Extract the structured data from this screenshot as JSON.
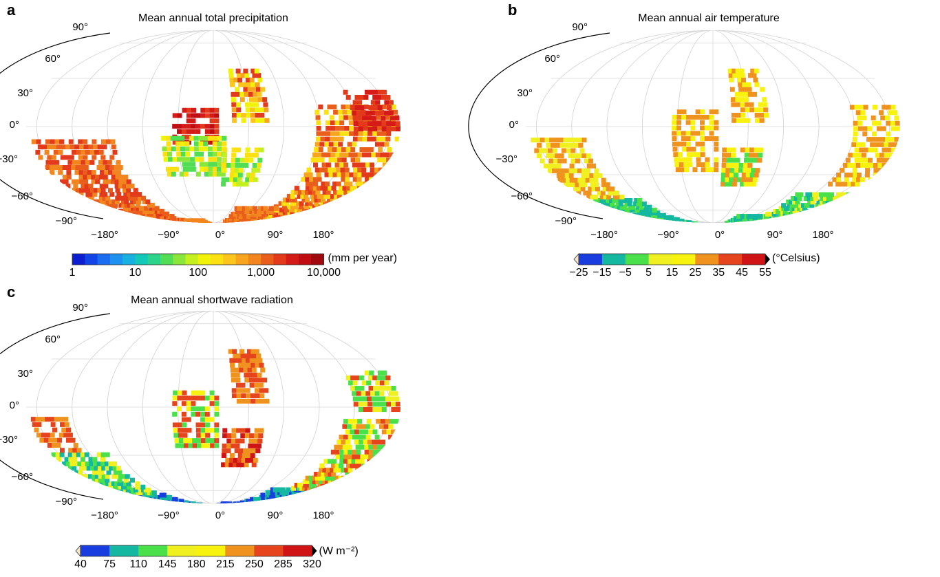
{
  "panels": [
    {
      "id": "a",
      "letter": "a",
      "title": "Mean annual total precipitation",
      "lat_labels": [
        "90°",
        "60°",
        "30°",
        "0°",
        "−30°",
        "−60°",
        "−90°"
      ],
      "lon_labels": [
        "−180°",
        "−90°",
        "0°",
        "90°",
        "180°"
      ],
      "colorbar": {
        "unit": "(mm per year)",
        "scale": "log",
        "range": [
          1,
          10000
        ],
        "ticks": [
          "1",
          "10",
          "100",
          "1,000",
          "10,000"
        ],
        "extend_arrows": false,
        "colors": [
          "#0b1fd1",
          "#1245e8",
          "#1a6cf0",
          "#1e90f0",
          "#18b0e0",
          "#12c8b8",
          "#2bd48a",
          "#52de54",
          "#8ae63a",
          "#c4f020",
          "#f0f20a",
          "#fbe012",
          "#fbc51c",
          "#f7a51e",
          "#f2851e",
          "#ea5e1c",
          "#e23a1a",
          "#d51b18",
          "#c00d12",
          "#a00a0e"
        ]
      }
    },
    {
      "id": "b",
      "letter": "b",
      "title": "Mean annual air temperature",
      "lat_labels": [
        "90°",
        "60°",
        "30°",
        "0°",
        "−30°",
        "−60°",
        "−90°"
      ],
      "lon_labels": [
        "−180°",
        "−90°",
        "0°",
        "90°",
        "180°"
      ],
      "colorbar": {
        "unit": "(°Celsius)",
        "scale": "linear",
        "range": [
          -25,
          55
        ],
        "ticks": [
          "−25",
          "−15",
          "−5",
          "5",
          "15",
          "25",
          "35",
          "45",
          "55"
        ],
        "extend_arrows": true,
        "colors": [
          "#1a3de0",
          "#14b8a0",
          "#4ae04a",
          "#f0f020",
          "#f7f20e",
          "#f0921e",
          "#e5441c",
          "#d01416"
        ]
      }
    },
    {
      "id": "c",
      "letter": "c",
      "title": "Mean annual shortwave radiation",
      "lat_labels": [
        "90°",
        "60°",
        "30°",
        "0°",
        "−30°",
        "−60°",
        "−90°"
      ],
      "lon_labels": [
        "−180°",
        "−90°",
        "0°",
        "90°",
        "180°"
      ],
      "colorbar": {
        "unit": "(W m⁻²)",
        "scale": "linear",
        "range": [
          40,
          320
        ],
        "ticks": [
          "40",
          "75",
          "110",
          "145",
          "180",
          "215",
          "250",
          "285",
          "320"
        ],
        "extend_arrows": true,
        "colors": [
          "#1a3de0",
          "#14b8a0",
          "#4ae04a",
          "#f0f020",
          "#f7f20e",
          "#f0921e",
          "#e5441c",
          "#d01416"
        ]
      }
    }
  ]
}
